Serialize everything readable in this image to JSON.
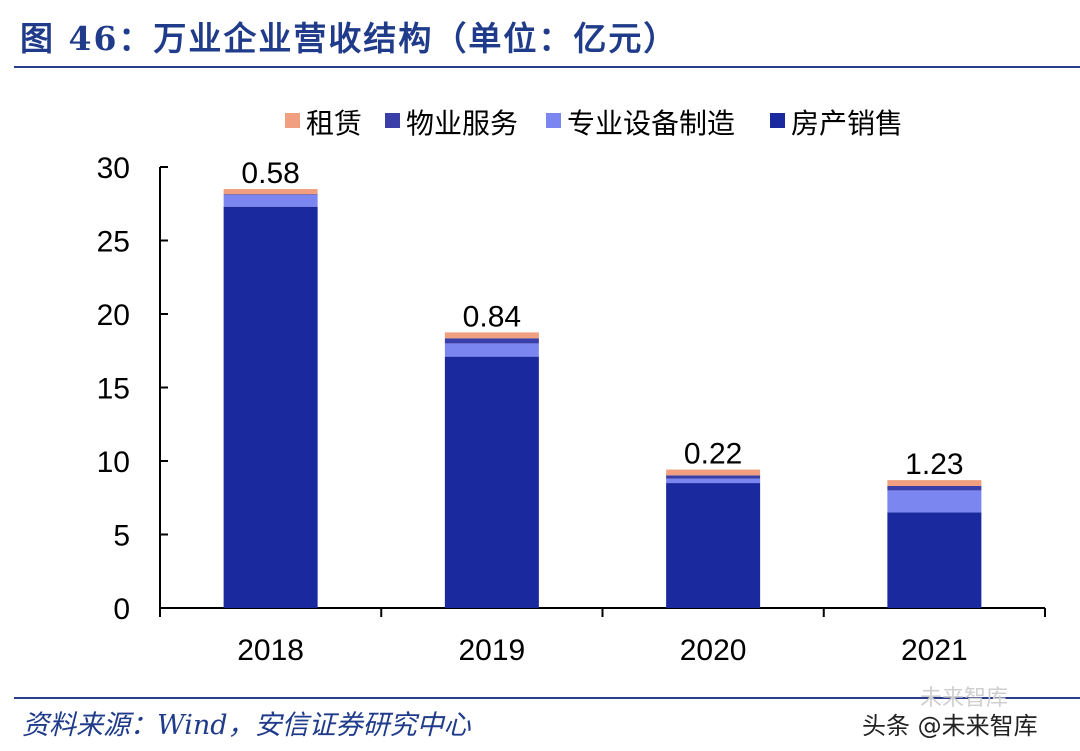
{
  "header": {
    "title": "图 46：万业企业营收结构（单位：亿元）"
  },
  "footer": {
    "source": "资料来源：Wind，安信证券研究中心",
    "watermark": "头条 @未来智库",
    "watermark_ghost": "未来智库"
  },
  "colors": {
    "title": "#1f3b8a",
    "rent": "#f0a080",
    "property": "#3a3ea8",
    "equipment": "#7b86f0",
    "housing": "#1a2a9e"
  },
  "chart_data": {
    "type": "bar",
    "stacked": true,
    "title": "万业企业营收结构（单位：亿元）",
    "categories": [
      "2018",
      "2019",
      "2020",
      "2021"
    ],
    "series": [
      {
        "name": "房产销售",
        "color": "#1a2a9e",
        "values": [
          27.3,
          17.1,
          8.5,
          6.5
        ]
      },
      {
        "name": "专业设备制造",
        "color": "#7b86f0",
        "values": [
          0.8,
          0.9,
          0.3,
          1.5
        ]
      },
      {
        "name": "物业服务",
        "color": "#3a3ea8",
        "values": [
          0.05,
          0.35,
          0.22,
          0.3
        ]
      },
      {
        "name": "租赁",
        "color": "#f0a080",
        "values": [
          0.35,
          0.4,
          0.4,
          0.4
        ]
      }
    ],
    "legend_order": [
      "租赁",
      "物业服务",
      "专业设备制造",
      "房产销售"
    ],
    "data_labels": [
      "0.58",
      "0.84",
      "0.22",
      "1.23"
    ],
    "ylim": [
      0,
      30
    ],
    "yticks": [
      0,
      5,
      10,
      15,
      20,
      25,
      30
    ],
    "xlabel": "",
    "ylabel": "",
    "legend_position": "top-center",
    "grid": false
  }
}
